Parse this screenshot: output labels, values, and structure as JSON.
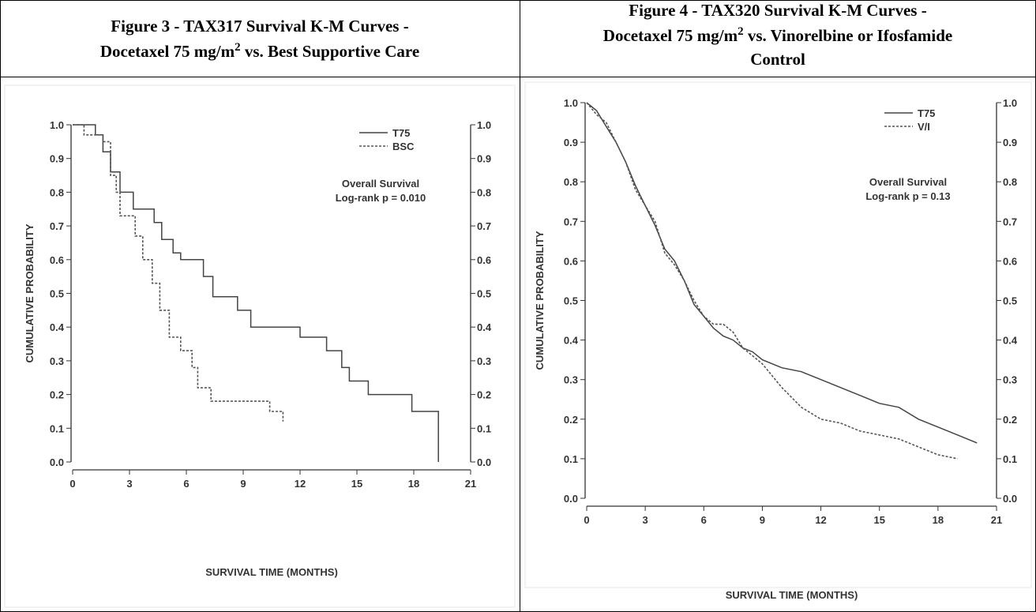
{
  "chart_data": [
    {
      "type": "line",
      "title": [
        [
          "Figure 3 - TAX317 Survival K-M Curves -"
        ],
        [
          "Docetaxel 75 mg/m",
          "2",
          " vs. Best Supportive Care"
        ]
      ],
      "xlabel": "SURVIVAL TIME (MONTHS)",
      "ylabel": "CUMULATIVE PROBABILITY",
      "annotations": [
        "Overall Survival",
        "Log-rank p = 0.010"
      ],
      "xlim": [
        0,
        21
      ],
      "xticks": [
        0,
        3,
        6,
        9,
        12,
        15,
        18,
        21
      ],
      "ylim": [
        0,
        1
      ],
      "yticks": [
        {
          "value": 0,
          "label": "0.0"
        },
        0.1,
        0.2,
        0.3,
        0.4,
        0.5,
        0.6,
        0.7,
        0.8,
        0.9,
        {
          "value": 1,
          "label": "1.0"
        }
      ],
      "legend": "upper right",
      "series": [
        {
          "name": "T75",
          "color": "#444444",
          "dash": false,
          "x": [
            0,
            1.2,
            1.2,
            1.6,
            1.6,
            2.0,
            2.0,
            2.5,
            2.5,
            3.2,
            3.2,
            4.3,
            4.3,
            4.7,
            4.7,
            5.3,
            5.3,
            5.7,
            5.7,
            6.9,
            6.9,
            7.4,
            7.4,
            8.7,
            8.7,
            9.4,
            9.4,
            12.0,
            12.0,
            13.4,
            13.4,
            14.2,
            14.2,
            14.6,
            14.6,
            15.6,
            15.6,
            17.9,
            17.9,
            19.3,
            19.3
          ],
          "values": [
            1,
            1,
            0.97,
            0.97,
            0.92,
            0.92,
            0.86,
            0.86,
            0.8,
            0.8,
            0.75,
            0.75,
            0.71,
            0.71,
            0.66,
            0.66,
            0.62,
            0.62,
            0.6,
            0.6,
            0.55,
            0.55,
            0.49,
            0.49,
            0.45,
            0.45,
            0.4,
            0.4,
            0.37,
            0.37,
            0.33,
            0.33,
            0.28,
            0.28,
            0.24,
            0.24,
            0.2,
            0.2,
            0.15,
            0.15,
            0
          ]
        },
        {
          "name": "BSC",
          "color": "#555555",
          "dash": true,
          "x": [
            0,
            0.6,
            0.6,
            1.6,
            1.6,
            2.0,
            2.0,
            2.3,
            2.3,
            2.5,
            2.5,
            3.3,
            3.3,
            3.7,
            3.7,
            4.2,
            4.2,
            4.6,
            4.6,
            5.1,
            5.1,
            5.7,
            5.7,
            6.3,
            6.3,
            6.6,
            6.6,
            7.3,
            7.3,
            10.4,
            10.4,
            11.1,
            11.1
          ],
          "values": [
            1,
            1,
            0.97,
            0.97,
            0.95,
            0.95,
            0.85,
            0.85,
            0.8,
            0.8,
            0.73,
            0.73,
            0.67,
            0.67,
            0.6,
            0.6,
            0.53,
            0.53,
            0.45,
            0.45,
            0.37,
            0.37,
            0.33,
            0.33,
            0.28,
            0.28,
            0.22,
            0.22,
            0.18,
            0.18,
            0.15,
            0.15,
            0.12
          ]
        }
      ]
    },
    {
      "type": "line",
      "title": [
        [
          "Figure 4 - TAX320 Survival K-M Curves -"
        ],
        [
          "Docetaxel 75 mg/m",
          "2",
          " vs. Vinorelbine or Ifosfamide"
        ],
        [
          "Control"
        ]
      ],
      "xlabel": "SURVIVAL TIME (MONTHS)",
      "ylabel": "CUMULATIVE PROBABILITY",
      "annotations": [
        "Overall Survival",
        "Log-rank p = 0.13"
      ],
      "xlim": [
        0,
        21
      ],
      "xticks": [
        0,
        3,
        6,
        9,
        12,
        15,
        18,
        21
      ],
      "ylim": [
        0,
        1
      ],
      "yticks": [
        {
          "value": 0,
          "label": "0.0"
        },
        0.1,
        0.2,
        0.3,
        0.4,
        0.5,
        0.6,
        0.7,
        0.8,
        0.9,
        {
          "value": 1,
          "label": "1.0"
        }
      ],
      "legend": "upper right",
      "series": [
        {
          "name": "T75",
          "color": "#444444",
          "dash": false,
          "x": [
            0,
            0.5,
            1,
            1.5,
            2,
            2.5,
            3,
            3.5,
            4,
            4.5,
            5,
            5.5,
            6,
            6.5,
            7,
            7.5,
            8,
            8.5,
            9,
            10,
            11,
            12,
            13,
            14,
            15,
            16,
            17,
            18,
            19,
            20
          ],
          "values": [
            1,
            0.98,
            0.94,
            0.9,
            0.85,
            0.79,
            0.74,
            0.69,
            0.63,
            0.6,
            0.55,
            0.49,
            0.46,
            0.43,
            0.41,
            0.4,
            0.38,
            0.37,
            0.35,
            0.33,
            0.32,
            0.3,
            0.28,
            0.26,
            0.24,
            0.23,
            0.2,
            0.18,
            0.16,
            0.14
          ]
        },
        {
          "name": "V/I",
          "color": "#555555",
          "dash": true,
          "x": [
            0,
            0.5,
            1,
            1.5,
            2,
            2.5,
            3,
            3.5,
            4,
            4.5,
            5,
            5.5,
            6,
            6.5,
            7,
            7.5,
            8,
            8.5,
            9,
            10,
            11,
            12,
            13,
            14,
            15,
            16,
            17,
            18,
            19,
            20
          ],
          "values": [
            1,
            0.97,
            0.95,
            0.9,
            0.85,
            0.78,
            0.74,
            0.7,
            0.62,
            0.59,
            0.55,
            0.5,
            0.46,
            0.44,
            0.44,
            0.42,
            0.38,
            0.36,
            0.34,
            0.28,
            0.23,
            0.2,
            0.19,
            0.17,
            0.16,
            0.15,
            0.13,
            0.11,
            0.1,
            null
          ]
        }
      ]
    }
  ]
}
